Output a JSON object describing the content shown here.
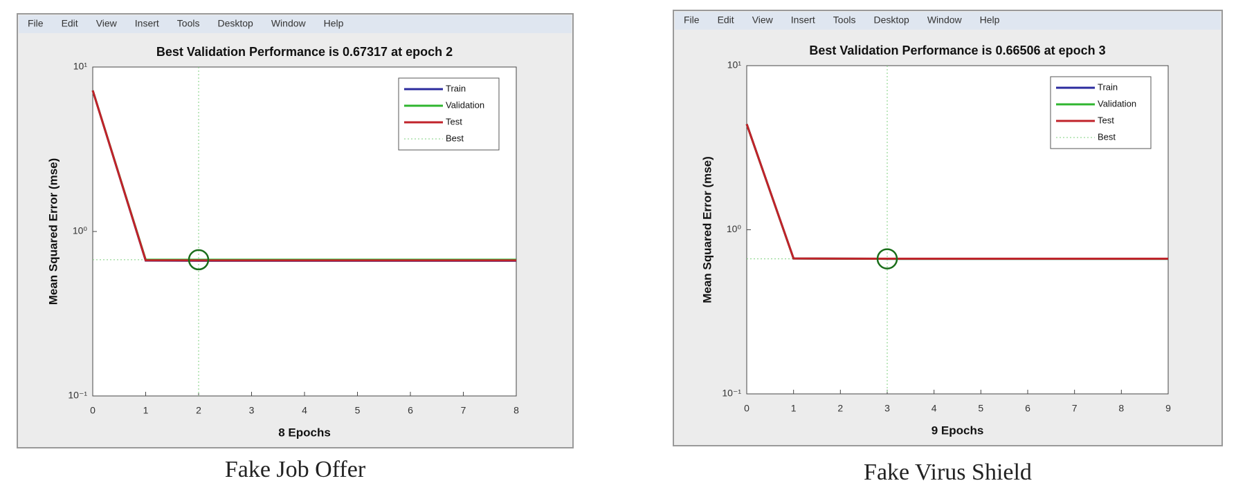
{
  "chart_data": [
    {
      "type": "line",
      "menu": [
        "File",
        "Edit",
        "View",
        "Insert",
        "Tools",
        "Desktop",
        "Window",
        "Help"
      ],
      "title": "Best Validation Performance is 0.67317 at epoch 2",
      "xlabel": "8 Epochs",
      "ylabel": "Mean Squared Error  (mse)",
      "caption": "Fake Job Offer",
      "x": [
        0,
        1,
        2,
        3,
        4,
        5,
        6,
        7,
        8
      ],
      "series": [
        {
          "name": "Train",
          "color": "#2b2b9e",
          "values": [
            7.2,
            0.665,
            0.664,
            0.664,
            0.664,
            0.664,
            0.664,
            0.664,
            0.664
          ]
        },
        {
          "name": "Validation",
          "color": "#2fb52f",
          "values": [
            7.2,
            0.674,
            0.67317,
            0.673,
            0.673,
            0.673,
            0.673,
            0.673,
            0.673
          ]
        },
        {
          "name": "Test",
          "color": "#c0222a",
          "values": [
            7.2,
            0.668,
            0.667,
            0.667,
            0.667,
            0.667,
            0.667,
            0.667,
            0.667
          ]
        }
      ],
      "best": {
        "name": "Best",
        "color": "#7ccf7c",
        "epoch": 2,
        "value": 0.67317
      },
      "yscale": "log",
      "xlim": [
        0,
        8
      ],
      "xticks": [
        0,
        1,
        2,
        3,
        4,
        5,
        6,
        7,
        8
      ],
      "ylim": [
        0.1,
        10
      ],
      "yticks": [
        {
          "value": 0.1,
          "label": "10⁻¹"
        },
        {
          "value": 1,
          "label": "10⁰"
        },
        {
          "value": 10,
          "label": "10¹"
        }
      ],
      "grid": false,
      "legend": "upper right"
    },
    {
      "type": "line",
      "menu": [
        "File",
        "Edit",
        "View",
        "Insert",
        "Tools",
        "Desktop",
        "Window",
        "Help"
      ],
      "title": "Best Validation Performance is 0.66506 at epoch 3",
      "xlabel": "9 Epochs",
      "ylabel": "Mean Squared Error  (mse)",
      "caption": "Fake Virus Shield",
      "x": [
        0,
        1,
        2,
        3,
        4,
        5,
        6,
        7,
        8,
        9
      ],
      "series": [
        {
          "name": "Train",
          "color": "#2b2b9e",
          "values": [
            4.4,
            0.668,
            0.666,
            0.665,
            0.665,
            0.665,
            0.665,
            0.665,
            0.665,
            0.665
          ]
        },
        {
          "name": "Validation",
          "color": "#2fb52f",
          "values": [
            4.4,
            0.668,
            0.666,
            0.66506,
            0.665,
            0.665,
            0.665,
            0.665,
            0.665,
            0.665
          ]
        },
        {
          "name": "Test",
          "color": "#c0222a",
          "values": [
            4.4,
            0.669,
            0.667,
            0.666,
            0.666,
            0.666,
            0.666,
            0.666,
            0.666,
            0.666
          ]
        }
      ],
      "best": {
        "name": "Best",
        "color": "#7ccf7c",
        "epoch": 3,
        "value": 0.66506
      },
      "yscale": "log",
      "xlim": [
        0,
        9
      ],
      "xticks": [
        0,
        1,
        2,
        3,
        4,
        5,
        6,
        7,
        8,
        9
      ],
      "ylim": [
        0.1,
        10
      ],
      "yticks": [
        {
          "value": 0.1,
          "label": "10⁻¹"
        },
        {
          "value": 1,
          "label": "10⁰"
        },
        {
          "value": 10,
          "label": "10¹"
        }
      ],
      "grid": false,
      "legend": "upper right"
    }
  ]
}
